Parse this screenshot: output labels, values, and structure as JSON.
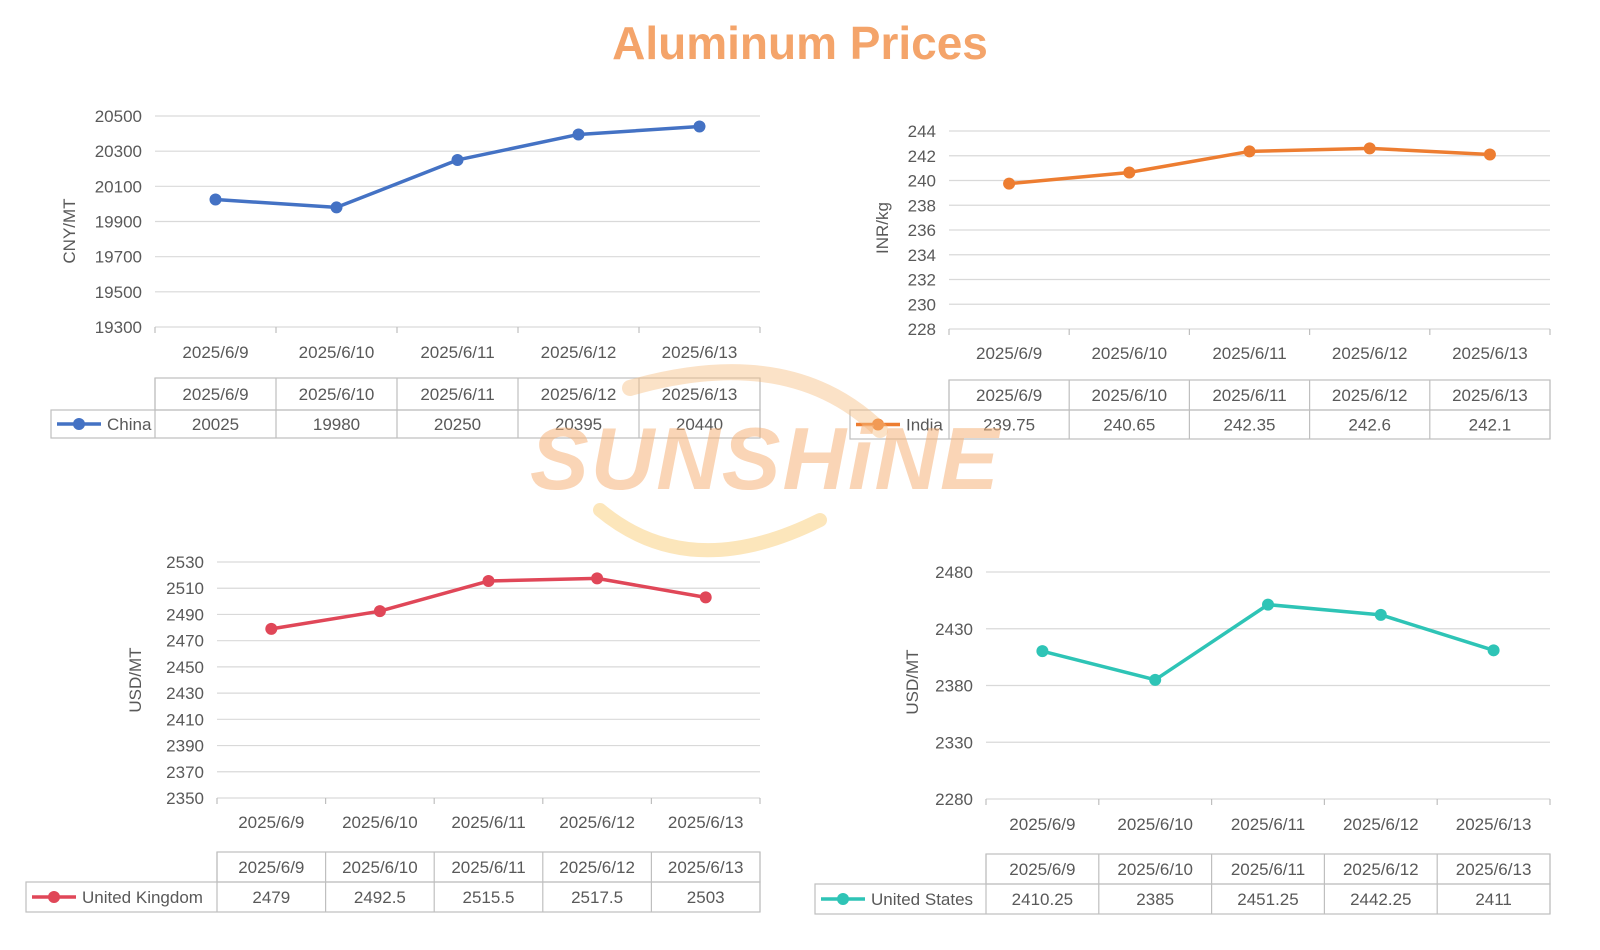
{
  "title": "Aluminum Prices",
  "watermark": {
    "text": "SUNSHiNE"
  },
  "colors": {
    "title": "#F4A46A",
    "grid": "#D9D9D9",
    "text": "#595959"
  },
  "chart_data": [
    {
      "type": "line",
      "categories": [
        "2025/6/9",
        "2025/6/10",
        "2025/6/11",
        "2025/6/12",
        "2025/6/13"
      ],
      "series": [
        {
          "name": "China",
          "values": [
            20025,
            19980,
            20250,
            20395,
            20440
          ],
          "color": "#4472C4"
        }
      ],
      "ylabel": "CNY/MT",
      "yticks": [
        19300,
        19500,
        19700,
        19900,
        20100,
        20300,
        20500
      ],
      "ylim": [
        19300,
        20500
      ],
      "table": {
        "header": [
          "2025/6/9",
          "2025/6/10",
          "2025/6/11",
          "2025/6/12",
          "2025/6/13"
        ],
        "row_label": "China",
        "row": [
          "20025",
          "19980",
          "20250",
          "20395",
          "20440"
        ]
      },
      "grid": true
    },
    {
      "type": "line",
      "categories": [
        "2025/6/9",
        "2025/6/10",
        "2025/6/11",
        "2025/6/12",
        "2025/6/13"
      ],
      "series": [
        {
          "name": "India",
          "values": [
            239.75,
            240.65,
            242.35,
            242.6,
            242.1
          ],
          "color": "#ED7D31"
        }
      ],
      "ylabel": "INR/kg",
      "yticks": [
        228,
        230,
        232,
        234,
        236,
        238,
        240,
        242,
        244
      ],
      "ylim": [
        228,
        244
      ],
      "table": {
        "header": [
          "2025/6/9",
          "2025/6/10",
          "2025/6/11",
          "2025/6/12",
          "2025/6/13"
        ],
        "row_label": "India",
        "row": [
          "239.75",
          "240.65",
          "242.35",
          "242.6",
          "242.1"
        ]
      },
      "grid": true
    },
    {
      "type": "line",
      "categories": [
        "2025/6/9",
        "2025/6/10",
        "2025/6/11",
        "2025/6/12",
        "2025/6/13"
      ],
      "series": [
        {
          "name": "United Kingdom",
          "values": [
            2479,
            2492.5,
            2515.5,
            2517.5,
            2503
          ],
          "color": "#E04758"
        }
      ],
      "ylabel": "USD/MT",
      "yticks": [
        2350,
        2370,
        2390,
        2410,
        2430,
        2450,
        2470,
        2490,
        2510,
        2530
      ],
      "ylim": [
        2350,
        2530
      ],
      "table": {
        "header": [
          "2025/6/9",
          "2025/6/10",
          "2025/6/11",
          "2025/6/12",
          "2025/6/13"
        ],
        "row_label": "United Kingdom",
        "row": [
          "2479",
          "2492.5",
          "2515.5",
          "2517.5",
          "2503"
        ]
      },
      "grid": true
    },
    {
      "type": "line",
      "categories": [
        "2025/6/9",
        "2025/6/10",
        "2025/6/11",
        "2025/6/12",
        "2025/6/13"
      ],
      "series": [
        {
          "name": "United States",
          "values": [
            2410.25,
            2385,
            2451.25,
            2442.25,
            2411
          ],
          "color": "#2EC4B6"
        }
      ],
      "ylabel": "USD/MT",
      "yticks": [
        2280,
        2330,
        2380,
        2430,
        2480
      ],
      "ylim": [
        2280,
        2480
      ],
      "table": {
        "header": [
          "2025/6/9",
          "2025/6/10",
          "2025/6/11",
          "2025/6/12",
          "2025/6/13"
        ],
        "row_label": "United States",
        "row": [
          "2410.25",
          "2385",
          "2451.25",
          "2442.25",
          "2411"
        ]
      },
      "grid": true
    }
  ]
}
